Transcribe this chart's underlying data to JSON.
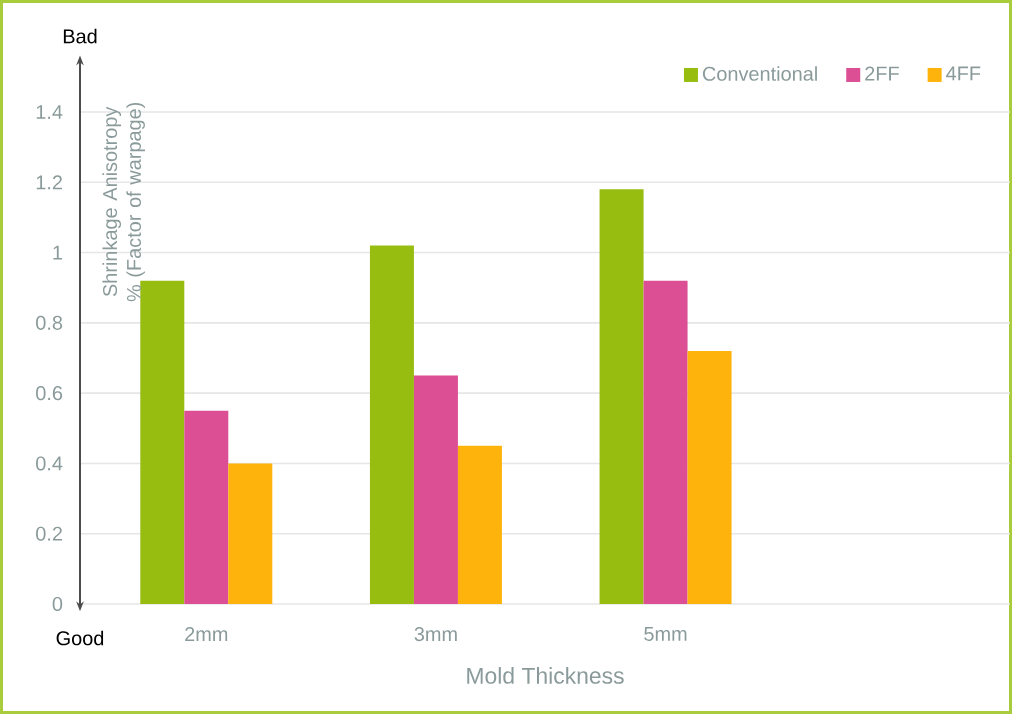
{
  "chart_data": {
    "type": "bar",
    "xlabel": "Mold Thickness",
    "ylabel": "Shrinkage Anisotropy % (Factor of warpage)",
    "categories": [
      "2mm",
      "3mm",
      "5mm",
      null
    ],
    "series": [
      {
        "name": "Conventional",
        "color": "#97bd10",
        "values": [
          0.92,
          1.02,
          1.18,
          null
        ]
      },
      {
        "name": "2FF",
        "color": "#dc4f94",
        "values": [
          0.55,
          0.65,
          0.92,
          null
        ]
      },
      {
        "name": "4FF",
        "color": "#fdb30c",
        "values": [
          0.4,
          0.45,
          0.72,
          null
        ]
      }
    ],
    "ylim": [
      0,
      1.4
    ],
    "yticks": [
      0,
      0.2,
      0.4,
      0.6,
      0.8,
      1,
      1.2,
      1.4
    ],
    "grid": "y",
    "legend": "top right",
    "annotations": [
      "Bad",
      "Good"
    ]
  }
}
